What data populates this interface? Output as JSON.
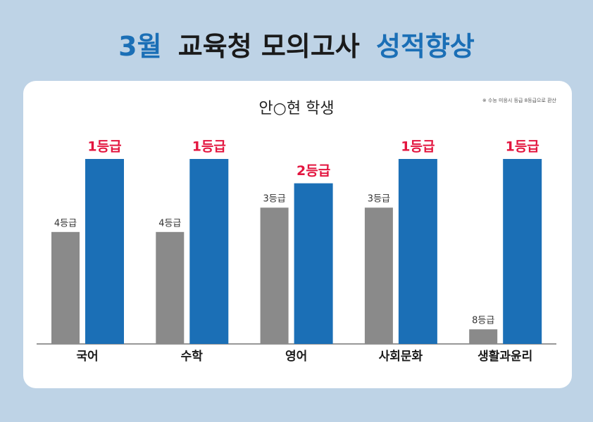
{
  "header": {
    "title_start": "3월",
    "title_middle": "교육청 모의고사",
    "title_end": "성적향상"
  },
  "chart_data": {
    "type": "bar",
    "title": "안○현 학생",
    "note": "※ 수능 미응시 등급 8등급으로 환산",
    "categories": [
      "국어",
      "수학",
      "영어",
      "사회문화",
      "생활과윤리"
    ],
    "series": [
      {
        "color": "#8a8a8a",
        "values": [
          4,
          4,
          3,
          3,
          8
        ],
        "value_labels": [
          "4등급",
          "4등급",
          "3등급",
          "3등급",
          "8등급"
        ],
        "label_color": "#333333"
      },
      {
        "color": "#1b6fb6",
        "values": [
          1,
          1,
          2,
          1,
          1
        ],
        "value_labels": [
          "1등급",
          "1등급",
          "2등급",
          "1등급",
          "1등급"
        ],
        "label_color": "#e3153f"
      }
    ]
  }
}
